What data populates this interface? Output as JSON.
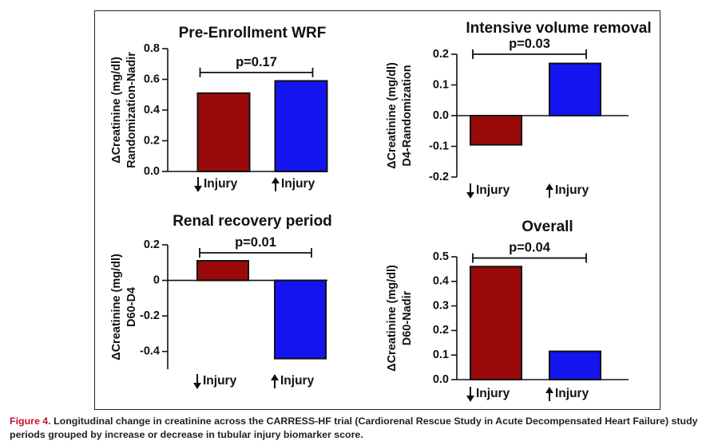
{
  "chart_data": [
    {
      "type": "bar",
      "title": "Pre-Enrollment WRF",
      "ylabel_line1": "ΔCreatinine (mg/dl)",
      "ylabel_line2": "Randomization-Nadir",
      "categories": [
        "Injury",
        "Injury"
      ],
      "arrows": [
        "down",
        "up"
      ],
      "values": [
        0.51,
        0.59
      ],
      "colors": [
        "#9b0a0a",
        "#1414f0"
      ],
      "ylim": [
        0,
        0.8
      ],
      "yticks": [
        0.0,
        0.2,
        0.4,
        0.6,
        0.8
      ],
      "ytick_labels": [
        "0.0",
        "0.2",
        "0.4",
        "0.6",
        "0.8"
      ],
      "pvalue": "p=0.17",
      "pvalue_level": 0.645
    },
    {
      "type": "bar",
      "title": "Intensive volume removal",
      "ylabel_line1": "ΔCreatinine (mg/dl)",
      "ylabel_line2": "D4-Randomization",
      "categories": [
        "Injury",
        "Injury"
      ],
      "arrows": [
        "down",
        "up"
      ],
      "values": [
        -0.095,
        0.17
      ],
      "colors": [
        "#9b0a0a",
        "#1414f0"
      ],
      "ylim": [
        -0.2,
        0.2
      ],
      "yticks": [
        -0.2,
        -0.1,
        0.0,
        0.1,
        0.2
      ],
      "ytick_labels": [
        "-0.2",
        "-0.1",
        "0.0",
        "0.1",
        "0.2"
      ],
      "pvalue": "p=0.03",
      "pvalue_level": 0.2
    },
    {
      "type": "bar",
      "title": "Renal recovery period",
      "ylabel_line1": "ΔCreatinine (mg/dl)",
      "ylabel_line2": "D60-D4",
      "categories": [
        "Injury",
        "Injury"
      ],
      "arrows": [
        "down",
        "up"
      ],
      "values": [
        0.11,
        -0.44
      ],
      "colors": [
        "#9b0a0a",
        "#1414f0"
      ],
      "ylim": [
        -0.5,
        0.2
      ],
      "yticks": [
        -0.4,
        -0.2,
        0.0,
        0.2
      ],
      "ytick_labels": [
        "-0.4",
        "-0.2",
        "0",
        "0.2"
      ],
      "pvalue": "p=0.01",
      "pvalue_level": 0.155
    },
    {
      "type": "bar",
      "title": "Overall",
      "ylabel_line1": "ΔCreatinine (mg/dl)",
      "ylabel_line2": "D60-Nadir",
      "categories": [
        "Injury",
        "Injury"
      ],
      "arrows": [
        "down",
        "up"
      ],
      "values": [
        0.46,
        0.115
      ],
      "colors": [
        "#9b0a0a",
        "#1414f0"
      ],
      "ylim": [
        0,
        0.5
      ],
      "yticks": [
        0.0,
        0.1,
        0.2,
        0.3,
        0.4,
        0.5
      ],
      "ytick_labels": [
        "0.0",
        "0.1",
        "0.2",
        "0.3",
        "0.4",
        "0.5"
      ],
      "pvalue": "p=0.04",
      "pvalue_level": 0.495
    }
  ],
  "caption": {
    "label": "Figure 4.",
    "text": "Longitudinal change in creatinine across the CARRESS-HF trial (Cardiorenal Rescue Study in Acute Decompensated Heart Failure) study periods grouped by increase or decrease in tubular injury biomarker score."
  }
}
